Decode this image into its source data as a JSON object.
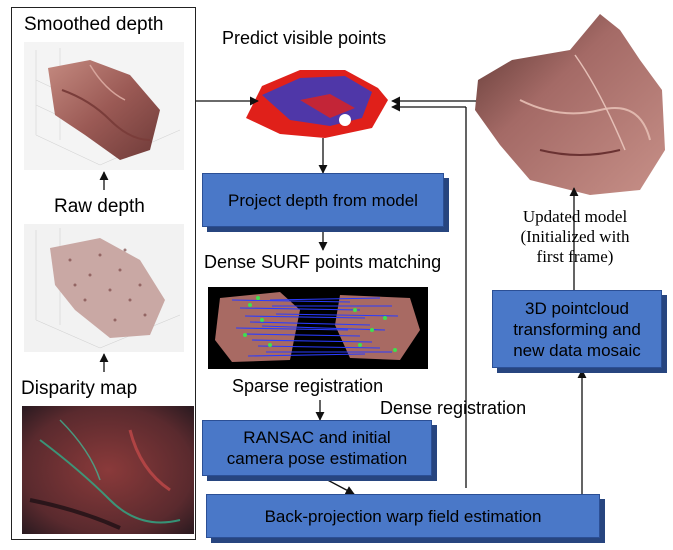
{
  "left_panel": {
    "smoothed_depth": "Smoothed depth",
    "raw_depth": "Raw depth",
    "disparity_map": "Disparity map"
  },
  "labels": {
    "predict_visible_points": "Predict visible points",
    "dense_surf": "Dense SURF points matching",
    "sparse_registration": "Sparse registration",
    "dense_registration": "Dense registration",
    "updated_model": "Updated model",
    "initialized": "(Initialized with",
    "first_frame": "first frame)"
  },
  "boxes": {
    "project_depth": "Project depth from model",
    "ransac_line1": "RANSAC and initial",
    "ransac_line2": "camera pose estimation",
    "warp_field": "Back-projection warp field estimation",
    "pointcloud_line1": "3D pointcloud",
    "pointcloud_line2": "transforming and",
    "pointcloud_line3": "new data mosaic"
  },
  "colors": {
    "box_fill": "#4a78c8",
    "box_shadow": "#27457f",
    "tissue": "#a86a63",
    "points_red": "#e0201a",
    "points_blue": "#1f3fd8",
    "match_lines": "#2a3cff",
    "match_points": "#3fe04f"
  }
}
